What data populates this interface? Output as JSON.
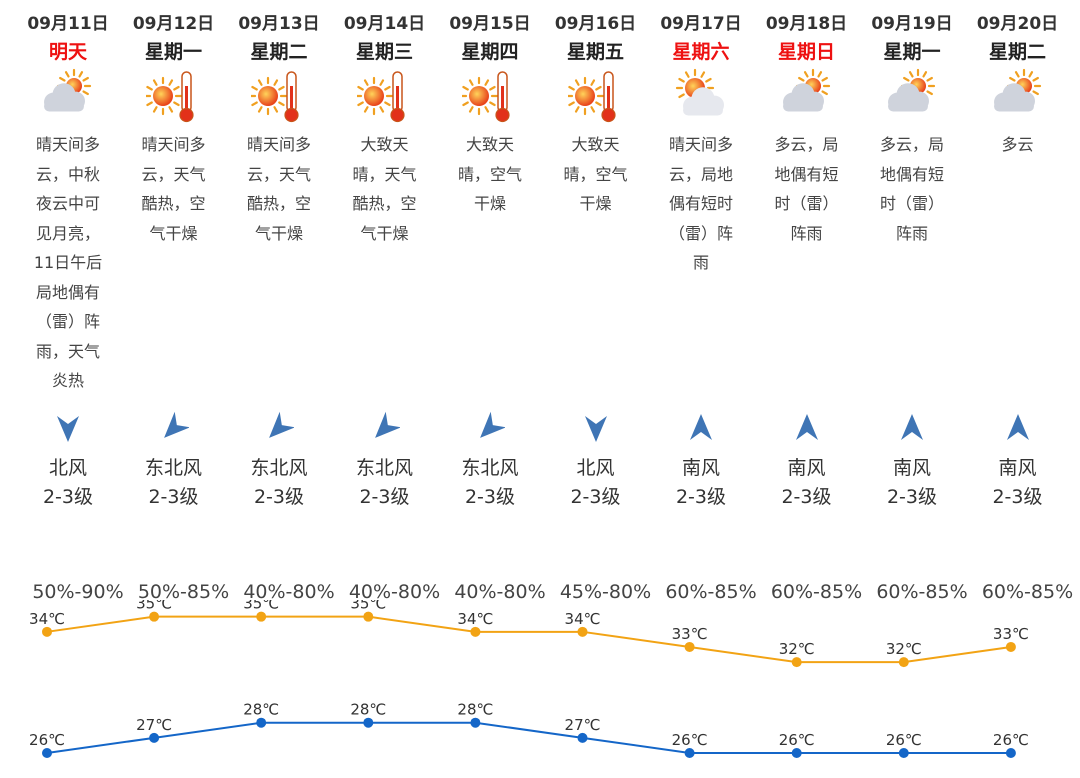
{
  "colors": {
    "high_line": "#f2a314",
    "low_line": "#1466c8",
    "weekend_red": "#ee1111",
    "wind_arrow": "#3f75b5"
  },
  "days": [
    {
      "date": "09月11日",
      "weekday": "明天",
      "weekday_red": true,
      "icon": "partly-cloudy-icon",
      "desc_lines": [
        "晴天间多",
        "云，中秋",
        "夜云中可",
        "见月亮，",
        "11日午后",
        "局地偶有",
        "（雷）阵",
        "雨，天气",
        "炎热"
      ],
      "wind_icon": "wind-north-icon",
      "wind_dir": "北风",
      "wind_level": "2-3级",
      "humidity": "50%-90%"
    },
    {
      "date": "09月12日",
      "weekday": "星期一",
      "weekday_red": false,
      "icon": "sunny-hot-icon",
      "desc_lines": [
        "晴天间多",
        "云，天气",
        "酷热，空",
        "气干燥"
      ],
      "wind_icon": "wind-northeast-icon",
      "wind_dir": "东北风",
      "wind_level": "2-3级",
      "humidity": "50%-85%"
    },
    {
      "date": "09月13日",
      "weekday": "星期二",
      "weekday_red": false,
      "icon": "sunny-hot-icon",
      "desc_lines": [
        "晴天间多",
        "云，天气",
        "酷热，空",
        "气干燥"
      ],
      "wind_icon": "wind-northeast-icon",
      "wind_dir": "东北风",
      "wind_level": "2-3级",
      "humidity": "40%-80%"
    },
    {
      "date": "09月14日",
      "weekday": "星期三",
      "weekday_red": false,
      "icon": "sunny-hot-icon",
      "desc_lines": [
        "大致天",
        "晴，天气",
        "酷热，空",
        "气干燥"
      ],
      "wind_icon": "wind-northeast-icon",
      "wind_dir": "东北风",
      "wind_level": "2-3级",
      "humidity": "40%-80%"
    },
    {
      "date": "09月15日",
      "weekday": "星期四",
      "weekday_red": false,
      "icon": "sunny-hot-icon",
      "desc_lines": [
        "大致天",
        "晴，空气",
        "干燥"
      ],
      "wind_icon": "wind-northeast-icon",
      "wind_dir": "东北风",
      "wind_level": "2-3级",
      "humidity": "40%-80%"
    },
    {
      "date": "09月16日",
      "weekday": "星期五",
      "weekday_red": false,
      "icon": "sunny-hot-icon",
      "desc_lines": [
        "大致天",
        "晴，空气",
        "干燥"
      ],
      "wind_icon": "wind-north-icon",
      "wind_dir": "北风",
      "wind_level": "2-3级",
      "humidity": "45%-80%"
    },
    {
      "date": "09月17日",
      "weekday": "星期六",
      "weekday_red": true,
      "icon": "cloud-sun-icon",
      "desc_lines": [
        "晴天间多",
        "云，局地",
        "偶有短时",
        "（雷）阵",
        "雨"
      ],
      "wind_icon": "wind-south-icon",
      "wind_dir": "南风",
      "wind_level": "2-3级",
      "humidity": "60%-85%"
    },
    {
      "date": "09月18日",
      "weekday": "星期日",
      "weekday_red": true,
      "icon": "partly-cloudy-icon",
      "desc_lines": [
        "多云，局",
        "地偶有短",
        "时（雷）",
        "阵雨"
      ],
      "wind_icon": "wind-south-icon",
      "wind_dir": "南风",
      "wind_level": "2-3级",
      "humidity": "60%-85%"
    },
    {
      "date": "09月19日",
      "weekday": "星期一",
      "weekday_red": false,
      "icon": "partly-cloudy-icon",
      "desc_lines": [
        "多云，局",
        "地偶有短",
        "时（雷）",
        "阵雨"
      ],
      "wind_icon": "wind-south-icon",
      "wind_dir": "南风",
      "wind_level": "2-3级",
      "humidity": "60%-85%"
    },
    {
      "date": "09月20日",
      "weekday": "星期二",
      "weekday_red": false,
      "icon": "partly-cloudy-icon",
      "desc_lines": [
        "多云"
      ],
      "wind_icon": "wind-south-icon",
      "wind_dir": "南风",
      "wind_level": "2-3级",
      "humidity": "60%-85%"
    }
  ],
  "chart_data": {
    "type": "line",
    "categories": [
      "09月11日",
      "09月12日",
      "09月13日",
      "09月14日",
      "09月15日",
      "09月16日",
      "09月17日",
      "09月18日",
      "09月19日",
      "09月20日"
    ],
    "series": [
      {
        "values": [
          34,
          35,
          35,
          35,
          34,
          34,
          33,
          32,
          32,
          33
        ],
        "labels": [
          "34℃",
          "35℃",
          "35℃",
          "35℃",
          "34℃",
          "34℃",
          "33℃",
          "32℃",
          "32℃",
          "33℃"
        ],
        "color": "#f2a314"
      },
      {
        "values": [
          26,
          27,
          28,
          28,
          28,
          27,
          26,
          26,
          26,
          26
        ],
        "labels": [
          "26℃",
          "27℃",
          "28℃",
          "28℃",
          "28℃",
          "27℃",
          "26℃",
          "26℃",
          "26℃",
          "26℃"
        ],
        "color": "#1466c8"
      }
    ],
    "unit": "℃"
  }
}
